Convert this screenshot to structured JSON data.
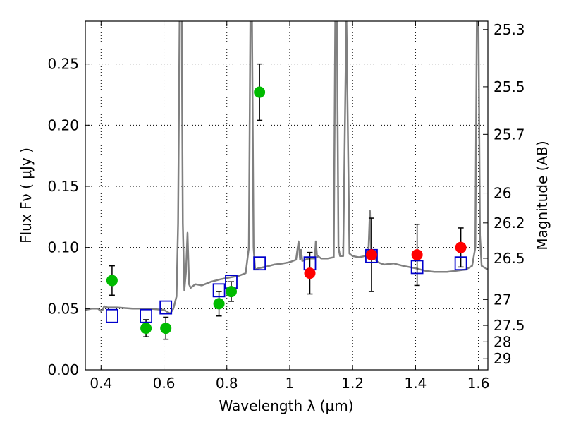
{
  "chart_data": {
    "type": "scatter",
    "title": "",
    "xlabel": "Wavelength  λ (μm)",
    "ylabel": "Flux  Fν  ( μJy )",
    "ylabel_right": "Magnitude (AB)",
    "xlim": [
      0.35,
      1.63
    ],
    "ylim": [
      0.0,
      0.285
    ],
    "grid": true,
    "x_ticks": [
      0.4,
      0.6,
      0.8,
      1.0,
      1.2,
      1.4,
      1.6
    ],
    "x_tick_labels": [
      "0.4",
      "0.6",
      "0.8",
      "1",
      "1.2",
      "1.4",
      "1.6"
    ],
    "y_ticks": [
      0.0,
      0.05,
      0.1,
      0.15,
      0.2,
      0.25
    ],
    "y_tick_labels": [
      "0.00",
      "0.05",
      "0.10",
      "0.15",
      "0.20",
      "0.25"
    ],
    "right_ticks": [
      {
        "flux": 0.2782,
        "label": "25.3"
      },
      {
        "flux": 0.2314,
        "label": "25.5"
      },
      {
        "flux": 0.1925,
        "label": "25.7"
      },
      {
        "flux": 0.1445,
        "label": "26"
      },
      {
        "flux": 0.1201,
        "label": "26.2"
      },
      {
        "flux": 0.0912,
        "label": "26.5"
      },
      {
        "flux": 0.0575,
        "label": "27"
      },
      {
        "flux": 0.0363,
        "label": "27.5"
      },
      {
        "flux": 0.0229,
        "label": "28"
      },
      {
        "flux": 0.0091,
        "label": "29"
      }
    ],
    "series": [
      {
        "name": "model spectrum",
        "kind": "line",
        "color": "#808080",
        "x": [
          0.35,
          0.37,
          0.39,
          0.4,
          0.405,
          0.41,
          0.42,
          0.45,
          0.5,
          0.55,
          0.6,
          0.62,
          0.63,
          0.64,
          0.645,
          0.65,
          0.6535,
          0.6565,
          0.66,
          0.665,
          0.67,
          0.675,
          0.68,
          0.685,
          0.69,
          0.7,
          0.72,
          0.75,
          0.78,
          0.8,
          0.82,
          0.84,
          0.86,
          0.87,
          0.875,
          0.88,
          0.885,
          0.89,
          0.9,
          0.92,
          0.95,
          0.98,
          1.0,
          1.02,
          1.028,
          1.033,
          1.036,
          1.04,
          1.06,
          1.08,
          1.083,
          1.087,
          1.09,
          1.1,
          1.12,
          1.14,
          1.145,
          1.15,
          1.155,
          1.16,
          1.17,
          1.18,
          1.19,
          1.2,
          1.22,
          1.24,
          1.25,
          1.255,
          1.258,
          1.262,
          1.265,
          1.27,
          1.28,
          1.3,
          1.33,
          1.36,
          1.4,
          1.43,
          1.46,
          1.5,
          1.53,
          1.56,
          1.58,
          1.59,
          1.595,
          1.6,
          1.605,
          1.61,
          1.63
        ],
        "y": [
          0.049,
          0.05,
          0.05,
          0.048,
          0.049,
          0.052,
          0.051,
          0.051,
          0.05,
          0.05,
          0.049,
          0.046,
          0.05,
          0.06,
          0.12,
          0.29,
          0.29,
          0.29,
          0.12,
          0.065,
          0.08,
          0.112,
          0.07,
          0.067,
          0.068,
          0.07,
          0.069,
          0.072,
          0.074,
          0.075,
          0.076,
          0.077,
          0.079,
          0.1,
          0.29,
          0.29,
          0.1,
          0.082,
          0.083,
          0.084,
          0.086,
          0.087,
          0.088,
          0.09,
          0.105,
          0.09,
          0.098,
          0.089,
          0.091,
          0.091,
          0.105,
          0.092,
          0.093,
          0.091,
          0.091,
          0.092,
          0.29,
          0.29,
          0.1,
          0.093,
          0.093,
          0.29,
          0.095,
          0.093,
          0.092,
          0.093,
          0.095,
          0.13,
          0.1,
          0.094,
          0.092,
          0.091,
          0.088,
          0.086,
          0.087,
          0.085,
          0.083,
          0.081,
          0.08,
          0.08,
          0.081,
          0.082,
          0.085,
          0.1,
          0.29,
          0.29,
          0.11,
          0.085,
          0.082
        ]
      },
      {
        "name": "observed (green)",
        "kind": "points",
        "color": "#00bb00",
        "x": [
          0.435,
          0.543,
          0.606,
          0.775,
          0.814,
          0.904
        ],
        "y": [
          0.073,
          0.034,
          0.034,
          0.054,
          0.064,
          0.227
        ],
        "err": [
          0.012,
          0.007,
          0.009,
          0.01,
          0.008,
          0.023
        ]
      },
      {
        "name": "observed (red)",
        "kind": "points",
        "color": "#ff0000",
        "x": [
          1.064,
          1.26,
          1.405,
          1.544
        ],
        "y": [
          0.079,
          0.094,
          0.094,
          0.1
        ],
        "err": [
          0.017,
          0.03,
          0.025,
          0.016
        ]
      },
      {
        "name": "model photometry",
        "kind": "squares",
        "color": "#0000cc",
        "x": [
          0.435,
          0.543,
          0.606,
          0.775,
          0.814,
          0.904,
          1.064,
          1.26,
          1.405,
          1.544
        ],
        "y": [
          0.044,
          0.044,
          0.051,
          0.065,
          0.072,
          0.087,
          0.087,
          0.093,
          0.084,
          0.087
        ]
      }
    ]
  }
}
